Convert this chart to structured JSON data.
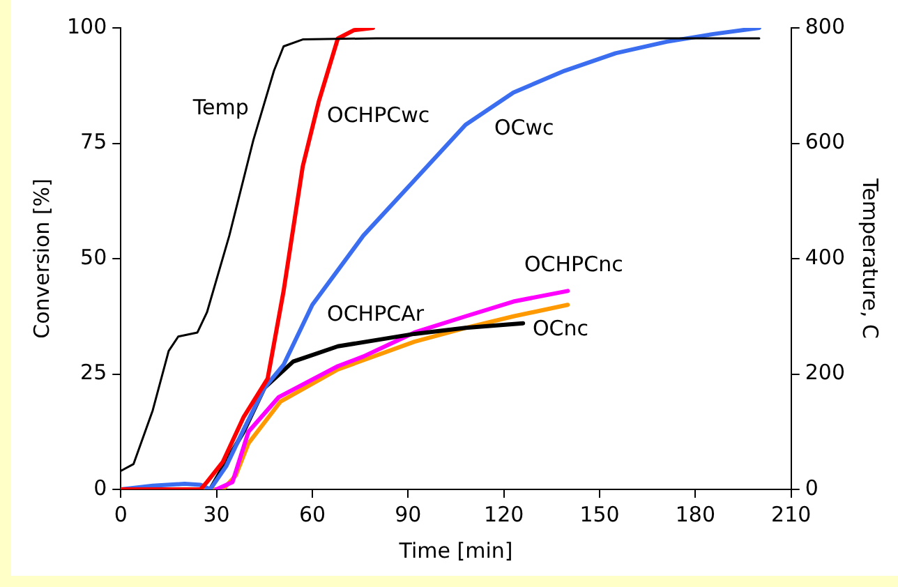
{
  "chart_data": {
    "type": "line",
    "xlabel": "Time [min]",
    "ylabel": "Conversion [%]",
    "y2label": "Temperature, C",
    "xlim": [
      0,
      210
    ],
    "xticks": [
      0,
      30,
      60,
      90,
      120,
      150,
      180,
      210
    ],
    "ylim": [
      0,
      100
    ],
    "yticks": [
      0,
      25,
      50,
      75,
      100
    ],
    "y2lim": [
      0,
      800
    ],
    "y2ticks": [
      0,
      200,
      400,
      600,
      800
    ],
    "grid": false,
    "legend": false,
    "marker": "none",
    "line_style": "solid",
    "series": [
      {
        "name": "Temp",
        "color": "#000000",
        "axis": "y2",
        "x": [
          0,
          1,
          4,
          10,
          15,
          18,
          24,
          27,
          34,
          41.5,
          48,
          51,
          57,
          80,
          120,
          160,
          200
        ],
        "values": [
          32,
          35,
          44,
          137,
          240,
          265,
          272,
          307,
          440,
          605,
          726,
          768,
          780,
          782,
          782,
          782,
          782
        ]
      },
      {
        "name": "OCHPCwc",
        "color": "#ff0000",
        "x": [
          0,
          25,
          27,
          32,
          38.5,
          46,
          51,
          57,
          62,
          68,
          73,
          79
        ],
        "values": [
          0,
          0,
          1.6,
          6,
          15.7,
          24,
          43,
          70,
          84,
          97.7,
          99.5,
          100
        ]
      },
      {
        "name": "OCwc",
        "color": "#3a6df0",
        "x": [
          0,
          10,
          20,
          25,
          28,
          33,
          38.5,
          45,
          51,
          60,
          76,
          92,
          108,
          123,
          139,
          155,
          171,
          186,
          200
        ],
        "values": [
          0,
          0.8,
          1.2,
          1,
          0,
          5,
          13,
          22,
          27,
          40,
          55,
          67,
          79,
          86,
          90.7,
          94.5,
          97,
          98.7,
          100
        ]
      },
      {
        "name": "OCHPCAr",
        "color": "#000000",
        "x": [
          28,
          33,
          38.5,
          45,
          54,
          68,
          92,
          108,
          126
        ],
        "values": [
          0,
          6,
          12.5,
          22,
          27.7,
          31,
          33.7,
          35,
          36
        ]
      },
      {
        "name": "OCHPCnc",
        "color": "#ff00ff",
        "x": [
          30,
          35,
          40,
          49.5,
          68,
          76,
          92,
          108,
          123,
          140
        ],
        "values": [
          0,
          1.6,
          12.5,
          20,
          26.7,
          28.8,
          34,
          37.5,
          40.7,
          43
        ]
      },
      {
        "name": "OCnc",
        "color": "#ff9900",
        "x": [
          0,
          20,
          32,
          36,
          40,
          50,
          68,
          92,
          108,
          123,
          140
        ],
        "values": [
          0,
          0,
          0,
          3,
          10,
          19,
          26,
          32,
          35,
          37.5,
          40
        ]
      }
    ]
  }
}
